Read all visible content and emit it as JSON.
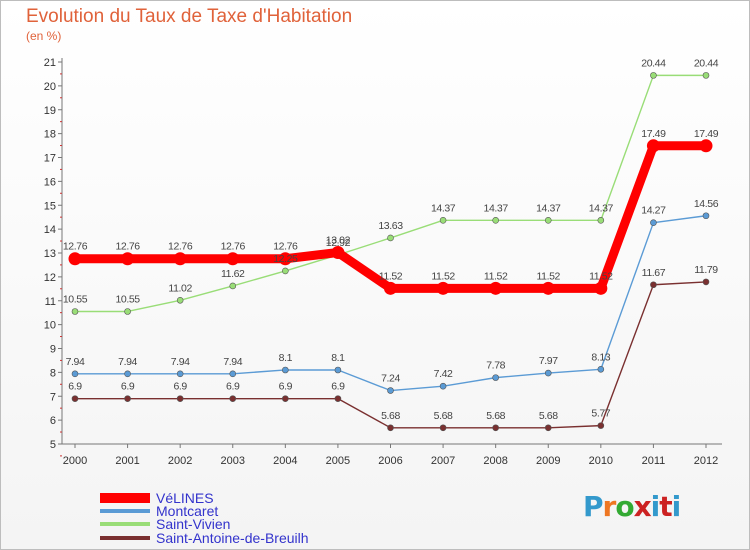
{
  "title": "Evolution du Taux de Taxe d'Habitation",
  "subtitle": "(en %)",
  "logo": {
    "text": "Proxiti",
    "colors": [
      "#3399cc",
      "#ee7722",
      "#33aa33",
      "#cc2222",
      "#3399cc",
      "#cc2222",
      "#3399cc"
    ]
  },
  "chart_data": {
    "type": "line",
    "title": "Evolution du Taux de Taxe d'Habitation",
    "ylabel": "(en %)",
    "xlabel": "",
    "ylim": [
      5,
      21
    ],
    "yticks": [
      5,
      6,
      7,
      8,
      9,
      10,
      11,
      12,
      13,
      14,
      15,
      16,
      17,
      18,
      19,
      20,
      21
    ],
    "grid": false,
    "legend_position": "bottom-left",
    "x": [
      "2000",
      "2001",
      "2002",
      "2003",
      "2004",
      "2005",
      "2006",
      "2007",
      "2008",
      "2009",
      "2010",
      "2011",
      "2012"
    ],
    "series": [
      {
        "name": "VéLINES",
        "color": "#ff0000",
        "values": [
          12.76,
          12.76,
          12.76,
          12.76,
          12.76,
          13.02,
          11.52,
          11.52,
          11.52,
          11.52,
          11.52,
          17.49,
          17.49
        ],
        "labels": [
          "12.76",
          "12.76",
          "12.76",
          "12.76",
          "12.76",
          "13.02",
          "11.52",
          "11.52",
          "11.52",
          "11.52",
          "11.52",
          "17.49",
          "17.49"
        ]
      },
      {
        "name": "Montcaret",
        "color": "#5b9bd5",
        "values": [
          7.94,
          7.94,
          7.94,
          7.94,
          8.1,
          8.1,
          7.24,
          7.42,
          7.78,
          7.97,
          8.13,
          14.27,
          14.56
        ],
        "labels": [
          "7.94",
          "7.94",
          "7.94",
          "7.94",
          "8.1",
          "8.1",
          "7.24",
          "7.42",
          "7.78",
          "7.97",
          "8.13",
          "14.27",
          "14.56"
        ]
      },
      {
        "name": "Saint-Vivien",
        "color": "#99dd77",
        "values": [
          10.55,
          10.55,
          11.02,
          11.62,
          12.25,
          12.92,
          13.63,
          14.37,
          14.37,
          14.37,
          14.37,
          20.44,
          20.44
        ],
        "labels": [
          "10.55",
          "10.55",
          "11.02",
          "11.62",
          "12.25",
          "12.92",
          "13.63",
          "14.37",
          "14.37",
          "14.37",
          "14.37",
          "20.44",
          "20.44"
        ]
      },
      {
        "name": "Saint-Antoine-de-Breuilh",
        "color": "#7a3030",
        "values": [
          6.9,
          6.9,
          6.9,
          6.9,
          6.9,
          6.9,
          5.68,
          5.68,
          5.68,
          5.68,
          5.77,
          11.67,
          11.79
        ],
        "labels": [
          "6.9",
          "6.9",
          "6.9",
          "6.9",
          "6.9",
          "6.9",
          "5.68",
          "5.68",
          "5.68",
          "5.68",
          "5.77",
          "11.67",
          "11.79"
        ]
      }
    ]
  }
}
